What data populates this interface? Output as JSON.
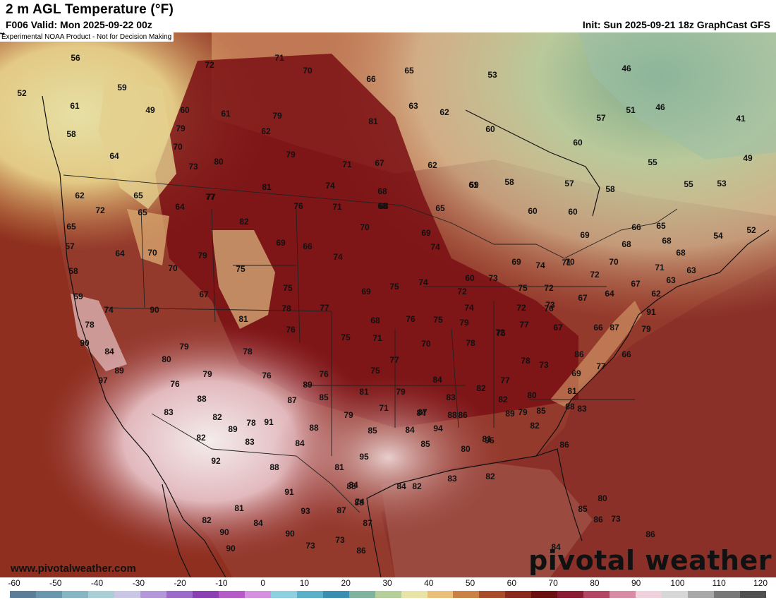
{
  "header": {
    "title": "2 m AGL Temperature (°F)",
    "valid": "F006 Valid: Mon 2025-09-22 00z",
    "init": "Init: Sun 2025-09-21 18z GraphCast GFS"
  },
  "map": {
    "disclaimer": "Experimental NOAA Product - Not for Decision Making",
    "watermark_url": "www.pivotalweather.com",
    "watermark_brand": "pivotal weather",
    "point_labels": [
      "56",
      "72",
      "71",
      "70",
      "66",
      "65",
      "53",
      "52",
      "59",
      "61",
      "62",
      "49",
      "60",
      "63",
      "46",
      "51",
      "46",
      "41",
      "58",
      "61",
      "79",
      "79",
      "62",
      "81",
      "64",
      "60",
      "57",
      "60",
      "73",
      "70",
      "80",
      "79",
      "71",
      "67",
      "62",
      "49",
      "55",
      "61",
      "65",
      "77",
      "81",
      "74",
      "68",
      "59",
      "58",
      "57",
      "58",
      "55",
      "53",
      "62",
      "64",
      "82",
      "76",
      "71",
      "68",
      "65",
      "60",
      "60",
      "66",
      "65",
      "54",
      "52",
      "72",
      "65",
      "77",
      "70",
      "69",
      "68",
      "69",
      "68",
      "68",
      "65",
      "68",
      "57",
      "64",
      "70",
      "79",
      "69",
      "66",
      "74",
      "74",
      "69",
      "70",
      "70",
      "71",
      "71",
      "63",
      "58",
      "70",
      "75",
      "60",
      "73",
      "74",
      "72",
      "72",
      "67",
      "63",
      "59",
      "90",
      "67",
      "75",
      "69",
      "75",
      "74",
      "72",
      "75",
      "73",
      "64",
      "62",
      "74",
      "77",
      "78",
      "77",
      "74",
      "72",
      "76",
      "76",
      "75",
      "68",
      "67",
      "66",
      "91",
      "78",
      "81",
      "76",
      "75",
      "71",
      "75",
      "79",
      "67",
      "87",
      "70",
      "79",
      "90",
      "84",
      "79",
      "78",
      "72",
      "78",
      "78",
      "77",
      "73",
      "69",
      "86",
      "66",
      "80",
      "79",
      "76",
      "76",
      "75",
      "84",
      "82",
      "77",
      "80",
      "81",
      "77",
      "89",
      "76",
      "89",
      "87",
      "81",
      "79",
      "83",
      "82",
      "79",
      "83",
      "82",
      "78",
      "91",
      "89",
      "85",
      "88",
      "88",
      "88",
      "85",
      "79",
      "71",
      "97",
      "83",
      "87",
      "88",
      "86",
      "84",
      "85",
      "84",
      "94",
      "81",
      "82",
      "82",
      "89",
      "83",
      "84",
      "85",
      "80",
      "95",
      "86",
      "92",
      "88",
      "81",
      "95",
      "91",
      "84",
      "82",
      "83",
      "82",
      "88",
      "88",
      "81",
      "93",
      "87",
      "84",
      "85",
      "80",
      "82",
      "90",
      "90",
      "86",
      "84",
      "90",
      "73",
      "73",
      "74",
      "87",
      "84",
      "86",
      "86",
      "73",
      "84"
    ]
  },
  "colorbar": {
    "ticks": [
      "-60",
      "-50",
      "-40",
      "-30",
      "-20",
      "-10",
      "0",
      "10",
      "20",
      "30",
      "40",
      "50",
      "60",
      "70",
      "80",
      "90",
      "100",
      "110",
      "120"
    ],
    "colors": [
      "#5b7f9a",
      "#6a97ad",
      "#86b5c4",
      "#a9cfd6",
      "#c9c6e6",
      "#b497d8",
      "#9c6ac8",
      "#8a3fb3",
      "#b65ac8",
      "#d690e0",
      "#8dd1e0",
      "#5ab0c8",
      "#3a8fb0",
      "#7fb39d",
      "#b4cf9a",
      "#e8e3a7",
      "#e9c07a",
      "#c98146",
      "#a94c2a",
      "#8a2a1c",
      "#6b0f0f",
      "#8c1b34",
      "#b34565",
      "#d88ba4",
      "#f0d2de",
      "#d7d7d7",
      "#a8a8a8",
      "#787878",
      "#505050"
    ]
  }
}
